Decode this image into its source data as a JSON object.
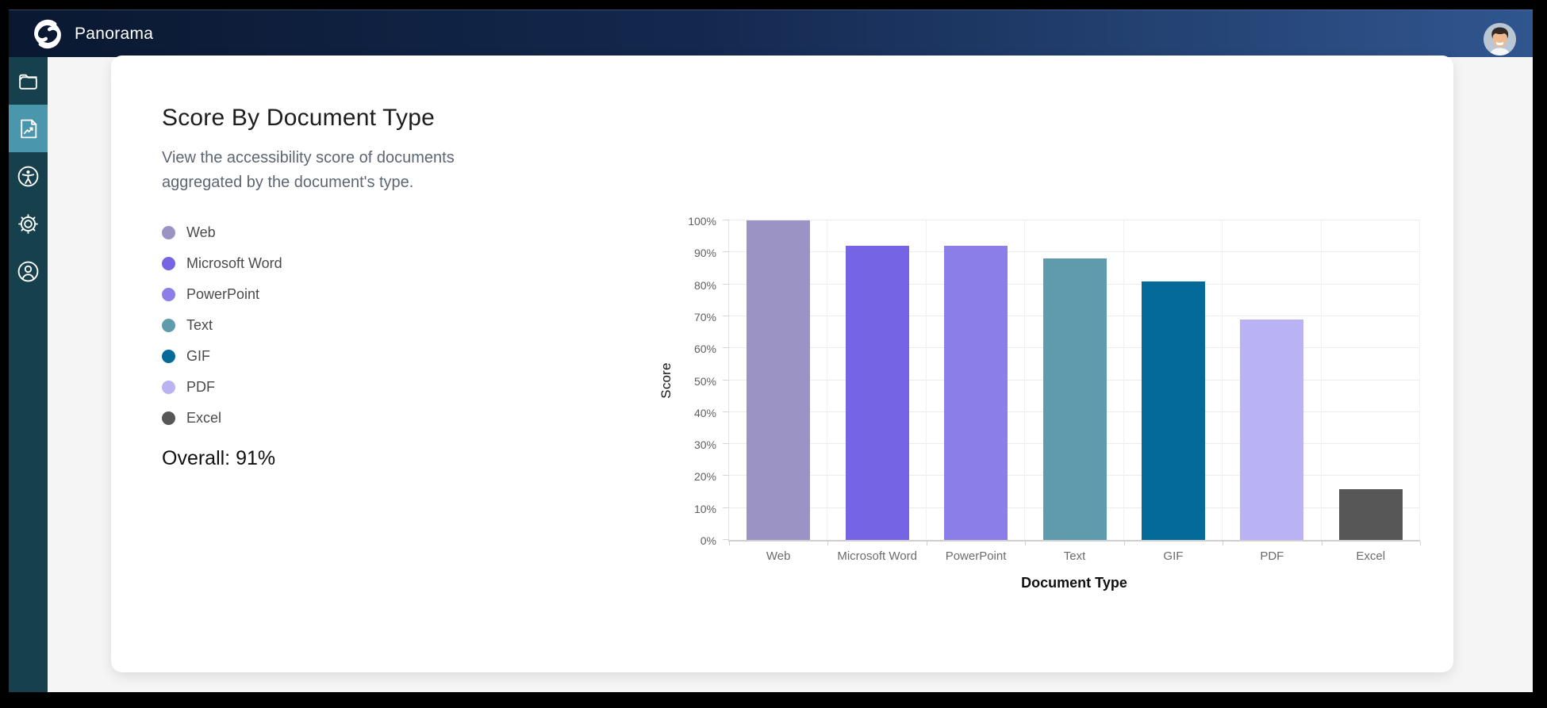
{
  "header": {
    "app_name": "Panorama",
    "logo_icon": "panorama-swirl-icon",
    "avatar_icon": "user-profile-photo"
  },
  "sidebar": {
    "items": [
      {
        "icon": "folder-icon",
        "selected": false
      },
      {
        "icon": "report-chart-icon",
        "selected": true
      },
      {
        "icon": "accessibility-icon",
        "selected": false
      },
      {
        "icon": "settings-gear-icon",
        "selected": false
      },
      {
        "icon": "account-icon",
        "selected": false
      }
    ],
    "selected_color": "#4a97ad",
    "background_color": "#17404d"
  },
  "card": {
    "title": "Score By Document Type",
    "description": "View the accessibility score of documents aggregated by the document's type.",
    "overall_label": "Overall: 91%"
  },
  "chart_data": {
    "type": "bar",
    "categories": [
      "Web",
      "Microsoft Word",
      "PowerPoint",
      "Text",
      "GIF",
      "PDF",
      "Excel"
    ],
    "values": [
      100,
      92,
      92,
      88,
      81,
      69,
      16
    ],
    "colors": [
      "#9a93c4",
      "#7564e3",
      "#8c7ee9",
      "#5e9bac",
      "#046a9a",
      "#b9b3f3",
      "#575757"
    ],
    "title": "Score By Document Type",
    "xlabel": "Document Type",
    "ylabel": "Score",
    "ylim": [
      0,
      100
    ],
    "y_tick_step": 10,
    "y_tick_suffix": "%",
    "grid": true,
    "legend_position": "left-panel",
    "legend_entries": [
      "Web",
      "Microsoft Word",
      "PowerPoint",
      "Text",
      "GIF",
      "PDF",
      "Excel"
    ]
  }
}
